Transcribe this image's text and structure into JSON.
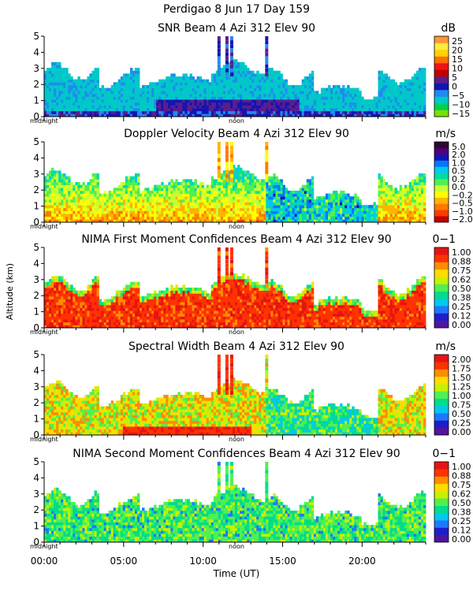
{
  "header": {
    "line1": "Perdigao    8 Jun 17 Day 159"
  },
  "y_axis_label": "Altitude (km)",
  "x_axis": {
    "label": "Time (UT)",
    "ticks": [
      "00:00",
      "05:00",
      "10:00",
      "15:00",
      "20:00"
    ],
    "tick_hours": [
      0,
      5,
      10,
      15,
      20
    ],
    "range_hours": [
      0,
      24
    ],
    "midnight_label": "midnight",
    "noon_label": "noon"
  },
  "colors": {
    "snr": [
      "#78e000",
      "#00d050",
      "#00c8c8",
      "#1e8cf0",
      "#1414b4",
      "#5a1e8c",
      "#c00000",
      "#f01414",
      "#ff6e00",
      "#ffd200",
      "#ffeb3c",
      "#ff9632"
    ],
    "velocity": [
      "#c00000",
      "#ff3c00",
      "#ff7800",
      "#ffb400",
      "#ffff00",
      "#c8ff32",
      "#50f050",
      "#00dca0",
      "#00c8f0",
      "#0078ff",
      "#1414b4",
      "#500078",
      "#2d0a32"
    ],
    "confidence": [
      "#5014a0",
      "#1e1ec8",
      "#1e78ff",
      "#00c8f0",
      "#00dc8c",
      "#50f050",
      "#c8f000",
      "#ffdc00",
      "#ff8c00",
      "#ff3200",
      "#e61414"
    ]
  },
  "chart_data": [
    {
      "type": "heatmap",
      "title": "SNR Beam 4 Azi 312 Elev 90",
      "units": "dB",
      "ylim": [
        0,
        5
      ],
      "yticks": [
        "0",
        "1",
        "2",
        "3",
        "4",
        "5"
      ],
      "colorbar": {
        "ticks": [
          "25",
          "20",
          "15",
          "10",
          "5",
          "0",
          "−5",
          "−10",
          "−15"
        ],
        "range": [
          -17,
          28
        ]
      }
    },
    {
      "type": "heatmap",
      "title": "Doppler Velocity Beam 4 Azi 312 Elev 90",
      "units": "m/s",
      "ylim": [
        0,
        5
      ],
      "yticks": [
        "0",
        "1",
        "2",
        "3",
        "4",
        "5"
      ],
      "colorbar": {
        "ticks": [
          "5.0",
          "2.0",
          "1.0",
          "0.5",
          "0.2",
          "0.0",
          "−0.2",
          "−0.5",
          "−1.0",
          "−2.0"
        ]
      }
    },
    {
      "type": "heatmap",
      "title": "NIMA First Moment Confidences Beam 4 Azi 312 Elev 90",
      "units": "0−1",
      "ylim": [
        0,
        5
      ],
      "yticks": [
        "0",
        "1",
        "2",
        "3",
        "4",
        "5"
      ],
      "colorbar": {
        "ticks": [
          "1.00",
          "0.88",
          "0.75",
          "0.62",
          "0.50",
          "0.38",
          "0.25",
          "0.12",
          "0.00"
        ],
        "range": [
          0,
          1
        ]
      }
    },
    {
      "type": "heatmap",
      "title": "Spectral Width Beam 4 Azi 312 Elev 90",
      "units": "m/s",
      "ylim": [
        0,
        5
      ],
      "yticks": [
        "0",
        "1",
        "2",
        "3",
        "4",
        "5"
      ],
      "colorbar": {
        "ticks": [
          "2.00",
          "1.75",
          "1.50",
          "1.25",
          "1.00",
          "0.75",
          "0.50",
          "0.25",
          "0.00"
        ],
        "range": [
          0,
          2
        ]
      }
    },
    {
      "type": "heatmap",
      "title": "NIMA Second Moment Confidences Beam 4 Azi 312 Elev 90",
      "units": "0−1",
      "ylim": [
        0,
        5
      ],
      "yticks": [
        "0",
        "1",
        "2",
        "3",
        "4",
        "5"
      ],
      "colorbar": {
        "ticks": [
          "1.00",
          "0.88",
          "0.75",
          "0.62",
          "0.50",
          "0.38",
          "0.25",
          "0.12",
          "0.00"
        ],
        "range": [
          0,
          1
        ]
      }
    }
  ]
}
